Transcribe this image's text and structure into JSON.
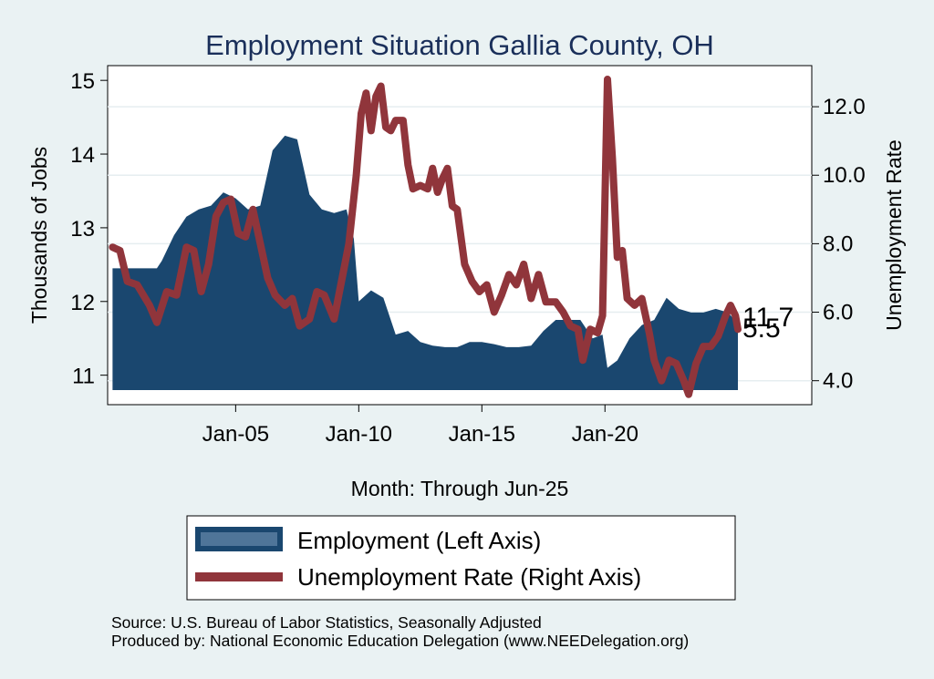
{
  "chart_data": {
    "type": "bar+line",
    "title": "Employment Situation Gallia  County, OH",
    "xlabel": "Month: Through Jun-25",
    "ylabel_left": "Thousands of Jobs",
    "ylabel_right": "Unemployment Rate",
    "x_ticks": [
      "Jan-05",
      "Jan-10",
      "Jan-15",
      "Jan-20"
    ],
    "y_left_ticks": [
      "11",
      "12",
      "13",
      "14",
      "15"
    ],
    "y_left_range": [
      10.6,
      15.2
    ],
    "y_right_ticks": [
      "4.0",
      "6.0",
      "8.0",
      "10.0",
      "12.0"
    ],
    "y_right_range": [
      3.3,
      13.2
    ],
    "x_range": [
      1999.8,
      2028.4
    ],
    "x_tick_positions": [
      2005.0,
      2010.0,
      2015.0,
      2020.0
    ],
    "series": [
      {
        "name": "Employment (Left Axis)",
        "axis": "left",
        "color": "#1a476f",
        "points": [
          [
            2000.0,
            12.45
          ],
          [
            2001.0,
            12.45
          ],
          [
            2001.8,
            12.45
          ],
          [
            2002.0,
            12.55
          ],
          [
            2002.5,
            12.9
          ],
          [
            2003.0,
            13.15
          ],
          [
            2003.5,
            13.25
          ],
          [
            2004.0,
            13.3
          ],
          [
            2004.5,
            13.48
          ],
          [
            2005.0,
            13.4
          ],
          [
            2005.5,
            13.25
          ],
          [
            2006.0,
            13.3
          ],
          [
            2006.5,
            14.05
          ],
          [
            2007.0,
            14.25
          ],
          [
            2007.5,
            14.2
          ],
          [
            2008.0,
            13.45
          ],
          [
            2008.5,
            13.25
          ],
          [
            2009.0,
            13.2
          ],
          [
            2009.5,
            13.25
          ],
          [
            2009.8,
            12.85
          ],
          [
            2010.0,
            12.0
          ],
          [
            2010.5,
            12.15
          ],
          [
            2011.0,
            12.05
          ],
          [
            2011.5,
            11.55
          ],
          [
            2012.0,
            11.6
          ],
          [
            2012.5,
            11.45
          ],
          [
            2013.0,
            11.4
          ],
          [
            2013.5,
            11.38
          ],
          [
            2014.0,
            11.38
          ],
          [
            2014.5,
            11.45
          ],
          [
            2015.0,
            11.45
          ],
          [
            2015.5,
            11.42
          ],
          [
            2016.0,
            11.38
          ],
          [
            2016.5,
            11.38
          ],
          [
            2017.0,
            11.4
          ],
          [
            2017.5,
            11.6
          ],
          [
            2018.0,
            11.75
          ],
          [
            2018.5,
            11.75
          ],
          [
            2019.0,
            11.75
          ],
          [
            2019.5,
            11.5
          ],
          [
            2019.9,
            11.55
          ],
          [
            2020.1,
            11.1
          ],
          [
            2020.5,
            11.2
          ],
          [
            2021.0,
            11.5
          ],
          [
            2021.5,
            11.68
          ],
          [
            2022.0,
            11.75
          ],
          [
            2022.5,
            12.05
          ],
          [
            2023.0,
            11.9
          ],
          [
            2023.5,
            11.85
          ],
          [
            2024.0,
            11.85
          ],
          [
            2024.5,
            11.9
          ],
          [
            2025.0,
            11.85
          ],
          [
            2025.4,
            11.7
          ]
        ]
      },
      {
        "name": "Unemployment Rate (Right Axis)",
        "axis": "right",
        "color": "#90353b",
        "points": [
          [
            2000.0,
            7.9
          ],
          [
            2000.3,
            7.8
          ],
          [
            2000.6,
            6.9
          ],
          [
            2001.0,
            6.8
          ],
          [
            2001.5,
            6.2
          ],
          [
            2001.8,
            5.7
          ],
          [
            2002.2,
            6.6
          ],
          [
            2002.6,
            6.5
          ],
          [
            2003.0,
            7.9
          ],
          [
            2003.3,
            7.8
          ],
          [
            2003.6,
            6.6
          ],
          [
            2003.9,
            7.4
          ],
          [
            2004.2,
            8.8
          ],
          [
            2004.5,
            9.2
          ],
          [
            2004.8,
            9.3
          ],
          [
            2005.1,
            8.3
          ],
          [
            2005.4,
            8.2
          ],
          [
            2005.7,
            9.0
          ],
          [
            2006.0,
            8.0
          ],
          [
            2006.3,
            7.0
          ],
          [
            2006.6,
            6.5
          ],
          [
            2007.0,
            6.2
          ],
          [
            2007.3,
            6.4
          ],
          [
            2007.6,
            5.6
          ],
          [
            2008.0,
            5.8
          ],
          [
            2008.3,
            6.6
          ],
          [
            2008.6,
            6.5
          ],
          [
            2009.0,
            5.8
          ],
          [
            2009.3,
            6.9
          ],
          [
            2009.6,
            8.0
          ],
          [
            2009.9,
            10.0
          ],
          [
            2010.1,
            11.8
          ],
          [
            2010.3,
            12.4
          ],
          [
            2010.5,
            11.3
          ],
          [
            2010.7,
            12.3
          ],
          [
            2010.9,
            12.6
          ],
          [
            2011.1,
            11.4
          ],
          [
            2011.3,
            11.3
          ],
          [
            2011.5,
            11.6
          ],
          [
            2011.8,
            11.6
          ],
          [
            2012.0,
            10.3
          ],
          [
            2012.2,
            9.6
          ],
          [
            2012.5,
            9.7
          ],
          [
            2012.8,
            9.6
          ],
          [
            2013.0,
            10.2
          ],
          [
            2013.2,
            9.5
          ],
          [
            2013.4,
            9.9
          ],
          [
            2013.6,
            10.2
          ],
          [
            2013.8,
            9.1
          ],
          [
            2014.0,
            9.0
          ],
          [
            2014.3,
            7.4
          ],
          [
            2014.6,
            6.9
          ],
          [
            2014.9,
            6.6
          ],
          [
            2015.2,
            6.8
          ],
          [
            2015.5,
            6.0
          ],
          [
            2015.8,
            6.5
          ],
          [
            2016.1,
            7.1
          ],
          [
            2016.4,
            6.8
          ],
          [
            2016.7,
            7.4
          ],
          [
            2017.0,
            6.4
          ],
          [
            2017.3,
            7.1
          ],
          [
            2017.6,
            6.3
          ],
          [
            2018.0,
            6.3
          ],
          [
            2018.3,
            6.0
          ],
          [
            2018.6,
            5.6
          ],
          [
            2018.9,
            5.5
          ],
          [
            2019.1,
            4.6
          ],
          [
            2019.4,
            5.5
          ],
          [
            2019.7,
            5.4
          ],
          [
            2019.9,
            5.9
          ],
          [
            2020.1,
            12.8
          ],
          [
            2020.3,
            10.5
          ],
          [
            2020.5,
            7.6
          ],
          [
            2020.7,
            7.8
          ],
          [
            2020.9,
            6.4
          ],
          [
            2021.2,
            6.2
          ],
          [
            2021.5,
            6.4
          ],
          [
            2021.8,
            5.4
          ],
          [
            2022.0,
            4.6
          ],
          [
            2022.3,
            4.0
          ],
          [
            2022.6,
            4.6
          ],
          [
            2022.9,
            4.5
          ],
          [
            2023.2,
            4.0
          ],
          [
            2023.4,
            3.6
          ],
          [
            2023.7,
            4.5
          ],
          [
            2024.0,
            5.0
          ],
          [
            2024.3,
            5.0
          ],
          [
            2024.6,
            5.3
          ],
          [
            2024.9,
            5.9
          ],
          [
            2025.1,
            6.2
          ],
          [
            2025.3,
            5.9
          ],
          [
            2025.4,
            5.5
          ]
        ]
      }
    ],
    "end_labels": {
      "employment": "11.7",
      "unemployment": "5.5"
    },
    "legend": [
      "Employment (Left Axis)",
      "Unemployment Rate (Right Axis)"
    ],
    "notes": [
      "Source: U.S. Bureau of Labor Statistics, Seasonally Adjusted",
      "Produced by: National Economic Education Delegation (www.NEEDelegation.org)"
    ]
  },
  "colors": {
    "background": "#eaf2f3",
    "plot_bg": "#ffffff",
    "bars": "#1a476f",
    "line": "#90353b",
    "title": "#1a2f5a"
  }
}
